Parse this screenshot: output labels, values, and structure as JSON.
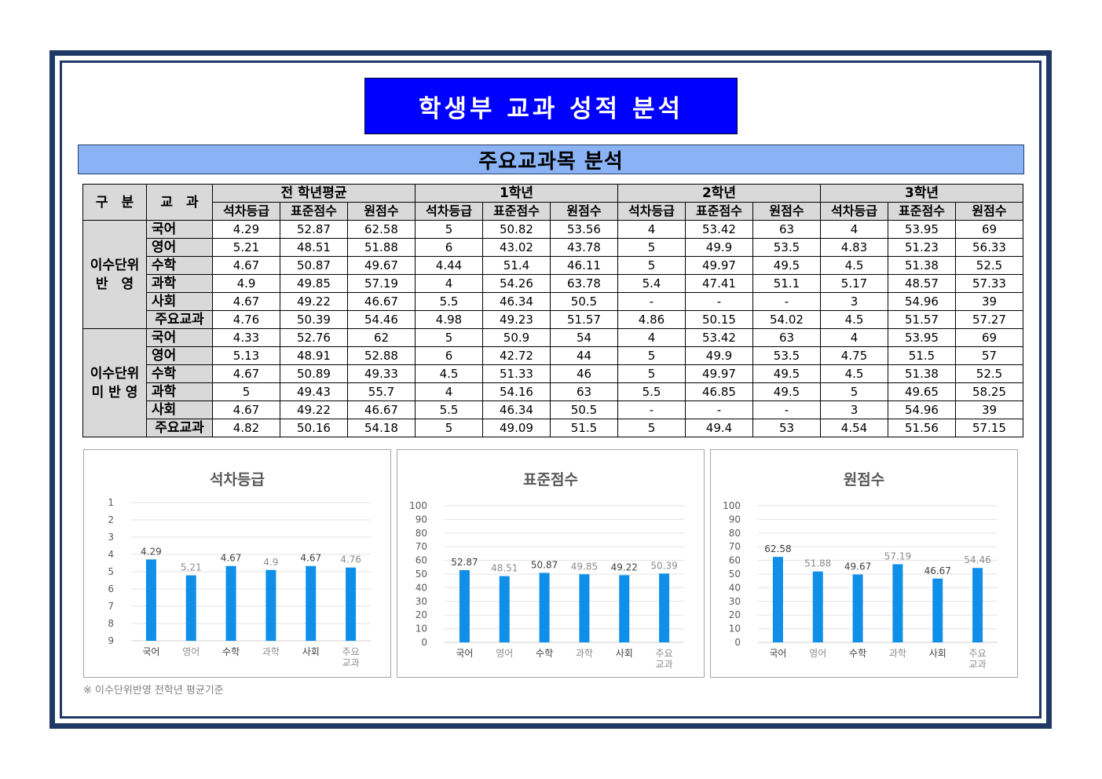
{
  "title": "학생부 교과 성적 분석",
  "section_title": "주요교과목 분석",
  "table": {
    "col_group": "구　분",
    "col_subject": "교　과",
    "periods": [
      "전 학년평균",
      "1학년",
      "2학년",
      "3학년"
    ],
    "metrics": [
      "석차등급",
      "표준점수",
      "원점수"
    ],
    "groups": [
      {
        "label": "이수단위 반　영",
        "rows": [
          {
            "subject": "국어",
            "values": [
              "4.29",
              "52.87",
              "62.58",
              "5",
              "50.82",
              "53.56",
              "4",
              "53.42",
              "63",
              "4",
              "53.95",
              "69"
            ]
          },
          {
            "subject": "영어",
            "values": [
              "5.21",
              "48.51",
              "51.88",
              "6",
              "43.02",
              "43.78",
              "5",
              "49.9",
              "53.5",
              "4.83",
              "51.23",
              "56.33"
            ]
          },
          {
            "subject": "수학",
            "values": [
              "4.67",
              "50.87",
              "49.67",
              "4.44",
              "51.4",
              "46.11",
              "5",
              "49.97",
              "49.5",
              "4.5",
              "51.38",
              "52.5"
            ]
          },
          {
            "subject": "과학",
            "values": [
              "4.9",
              "49.85",
              "57.19",
              "4",
              "54.26",
              "63.78",
              "5.4",
              "47.41",
              "51.1",
              "5.17",
              "48.57",
              "57.33"
            ]
          },
          {
            "subject": "사회",
            "values": [
              "4.67",
              "49.22",
              "46.67",
              "5.5",
              "46.34",
              "50.5",
              "-",
              "-",
              "-",
              "3",
              "54.96",
              "39"
            ]
          },
          {
            "subject": "주요교과",
            "values": [
              "4.76",
              "50.39",
              "54.46",
              "4.98",
              "49.23",
              "51.57",
              "4.86",
              "50.15",
              "54.02",
              "4.5",
              "51.57",
              "57.27"
            ]
          }
        ]
      },
      {
        "label": "이수단위 미 반 영",
        "rows": [
          {
            "subject": "국어",
            "values": [
              "4.33",
              "52.76",
              "62",
              "5",
              "50.9",
              "54",
              "4",
              "53.42",
              "63",
              "4",
              "53.95",
              "69"
            ]
          },
          {
            "subject": "영어",
            "values": [
              "5.13",
              "48.91",
              "52.88",
              "6",
              "42.72",
              "44",
              "5",
              "49.9",
              "53.5",
              "4.75",
              "51.5",
              "57"
            ]
          },
          {
            "subject": "수학",
            "values": [
              "4.67",
              "50.89",
              "49.33",
              "4.5",
              "51.33",
              "46",
              "5",
              "49.97",
              "49.5",
              "4.5",
              "51.38",
              "52.5"
            ]
          },
          {
            "subject": "과학",
            "values": [
              "5",
              "49.43",
              "55.7",
              "4",
              "54.16",
              "63",
              "5.5",
              "46.85",
              "49.5",
              "5",
              "49.65",
              "58.25"
            ]
          },
          {
            "subject": "사회",
            "values": [
              "4.67",
              "49.22",
              "46.67",
              "5.5",
              "46.34",
              "50.5",
              "-",
              "-",
              "-",
              "3",
              "54.96",
              "39"
            ]
          },
          {
            "subject": "주요교과",
            "values": [
              "4.82",
              "50.16",
              "54.18",
              "5",
              "49.09",
              "51.5",
              "5",
              "49.4",
              "53",
              "4.54",
              "51.56",
              "57.15"
            ]
          }
        ]
      }
    ]
  },
  "chart_data": [
    {
      "type": "bar",
      "title": "석차등급",
      "categories": [
        "국어",
        "영어",
        "수학",
        "과학",
        "사회",
        "주요교과"
      ],
      "values": [
        4.29,
        5.21,
        4.67,
        4.9,
        4.67,
        4.76
      ],
      "ylim": [
        1,
        9
      ],
      "y_inverted": true,
      "yticks": [
        1,
        2,
        3,
        4,
        5,
        6,
        7,
        8,
        9
      ],
      "grid": true,
      "bar_color": "#0f8fe8",
      "label_colors": [
        "#404040",
        "#8c8c8c",
        "#404040",
        "#8c8c8c",
        "#404040",
        "#8c8c8c"
      ]
    },
    {
      "type": "bar",
      "title": "표준점수",
      "categories": [
        "국어",
        "영어",
        "수학",
        "과학",
        "사회",
        "주요교과"
      ],
      "values": [
        52.87,
        48.51,
        50.87,
        49.85,
        49.22,
        50.39
      ],
      "ylim": [
        0,
        100
      ],
      "yticks": [
        0,
        10,
        20,
        30,
        40,
        50,
        60,
        70,
        80,
        90,
        100
      ],
      "grid": true,
      "bar_color": "#0f8fe8",
      "label_colors": [
        "#404040",
        "#8c8c8c",
        "#404040",
        "#8c8c8c",
        "#404040",
        "#8c8c8c"
      ]
    },
    {
      "type": "bar",
      "title": "원점수",
      "categories": [
        "국어",
        "영어",
        "수학",
        "과학",
        "사회",
        "주요교과"
      ],
      "values": [
        62.58,
        51.88,
        49.67,
        57.19,
        46.67,
        54.46
      ],
      "ylim": [
        0,
        100
      ],
      "yticks": [
        0,
        10,
        20,
        30,
        40,
        50,
        60,
        70,
        80,
        90,
        100
      ],
      "grid": true,
      "bar_color": "#0f8fe8",
      "label_colors": [
        "#404040",
        "#8c8c8c",
        "#404040",
        "#8c8c8c",
        "#404040",
        "#8c8c8c"
      ]
    }
  ],
  "footnote": "※ 이수단위반영 전학년 평균기준"
}
